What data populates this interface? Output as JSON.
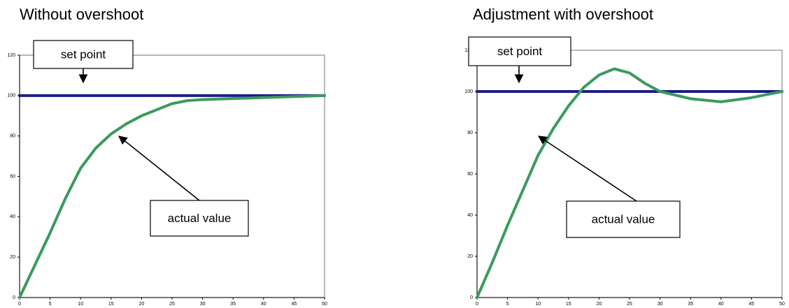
{
  "chart_data": [
    {
      "type": "line",
      "title": "Without overshoot",
      "x": [
        0,
        2.5,
        5,
        7.5,
        10,
        12.5,
        15,
        17.5,
        20,
        22.5,
        25,
        27.5,
        30,
        35,
        40,
        45,
        50
      ],
      "series": [
        {
          "color": "#1c1c8a",
          "values": [
            100,
            100,
            100,
            100,
            100,
            100,
            100,
            100,
            100,
            100,
            100,
            100,
            100,
            100,
            100,
            100,
            100
          ]
        },
        {
          "color": "#3b9a5e",
          "values": [
            0,
            16,
            32,
            49,
            64,
            74,
            81,
            86,
            90,
            93,
            96,
            97.5,
            98,
            98.5,
            99,
            99.5,
            100
          ]
        }
      ],
      "xlim": [
        0,
        50
      ],
      "xticks": [
        0,
        5,
        10,
        15,
        20,
        25,
        30,
        35,
        40,
        45,
        50
      ],
      "ylim": [
        0,
        120
      ],
      "yticks": [
        0,
        20,
        40,
        60,
        80,
        100,
        120
      ],
      "annotations": [
        {
          "text": "set point"
        },
        {
          "text": "actual value"
        }
      ]
    },
    {
      "type": "line",
      "title": "Adjustment with overshoot",
      "x": [
        0,
        2.5,
        5,
        7.5,
        10,
        12.5,
        15,
        17.5,
        20,
        22.5,
        25,
        27.5,
        30,
        35,
        40,
        45,
        50
      ],
      "series": [
        {
          "color": "#1c1c8a",
          "values": [
            100,
            100,
            100,
            100,
            100,
            100,
            100,
            100,
            100,
            100,
            100,
            100,
            100,
            100,
            100,
            100,
            100
          ]
        },
        {
          "color": "#3b9a5e",
          "values": [
            0,
            17,
            35,
            52,
            69,
            82,
            93,
            102,
            108,
            111,
            109,
            104,
            100,
            96.5,
            95,
            97,
            100
          ]
        }
      ],
      "xlim": [
        0,
        50
      ],
      "xticks": [
        0,
        5,
        10,
        15,
        20,
        25,
        30,
        35,
        40,
        45,
        50
      ],
      "ylim": [
        0,
        120
      ],
      "yticks": [
        0,
        20,
        40,
        60,
        80,
        100,
        120
      ],
      "annotations": [
        {
          "text": "set point"
        },
        {
          "text": "actual value"
        }
      ]
    }
  ]
}
